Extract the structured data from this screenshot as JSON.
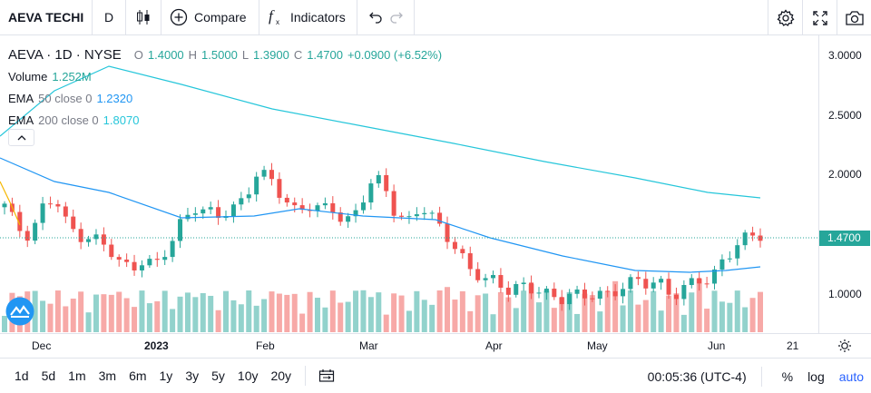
{
  "toolbar": {
    "symbol": "AEVA TECHI",
    "interval": "D",
    "compare_label": "Compare",
    "indicators_label": "Indicators"
  },
  "legend": {
    "title": "AEVA · 1D · NYSE",
    "open_label": "O",
    "open": "1.4000",
    "high_label": "H",
    "high": "1.5000",
    "low_label": "L",
    "low": "1.3900",
    "close_label": "C",
    "close": "1.4700",
    "change": "+0.0900 (+6.52%)",
    "volume_label": "Volume",
    "volume": "1.252M",
    "ema50_label": "EMA",
    "ema50_params": "50 close 0",
    "ema50_value": "1.2320",
    "ema200_label": "EMA",
    "ema200_params": "200 close 0",
    "ema200_value": "1.8070"
  },
  "price_axis": {
    "ticks": [
      "3.0000",
      "2.5000",
      "2.0000",
      "1.0000"
    ],
    "last_price": "1.4700"
  },
  "time_axis": {
    "labels": [
      "Dec",
      "2023",
      "Feb",
      "Mar",
      "Apr",
      "May",
      "Jun",
      "21"
    ]
  },
  "bottom": {
    "ranges": [
      "1d",
      "5d",
      "1m",
      "3m",
      "6m",
      "1y",
      "3y",
      "5y",
      "10y",
      "20y"
    ],
    "clock": "00:05:36 (UTC-4)",
    "percent": "%",
    "log": "log",
    "auto": "auto"
  },
  "colors": {
    "up": "#26a69a",
    "down": "#ef5350",
    "ema50": "#2196f3",
    "ema200": "#26c6da",
    "price_label_bg": "#26a69a",
    "accent": "#2962ff"
  },
  "chart_data": {
    "type": "candlestick",
    "y_range": [
      0.7,
      3.2
    ],
    "last_close": 1.47,
    "ema50_value": 1.232,
    "ema200_value": 1.807
  }
}
